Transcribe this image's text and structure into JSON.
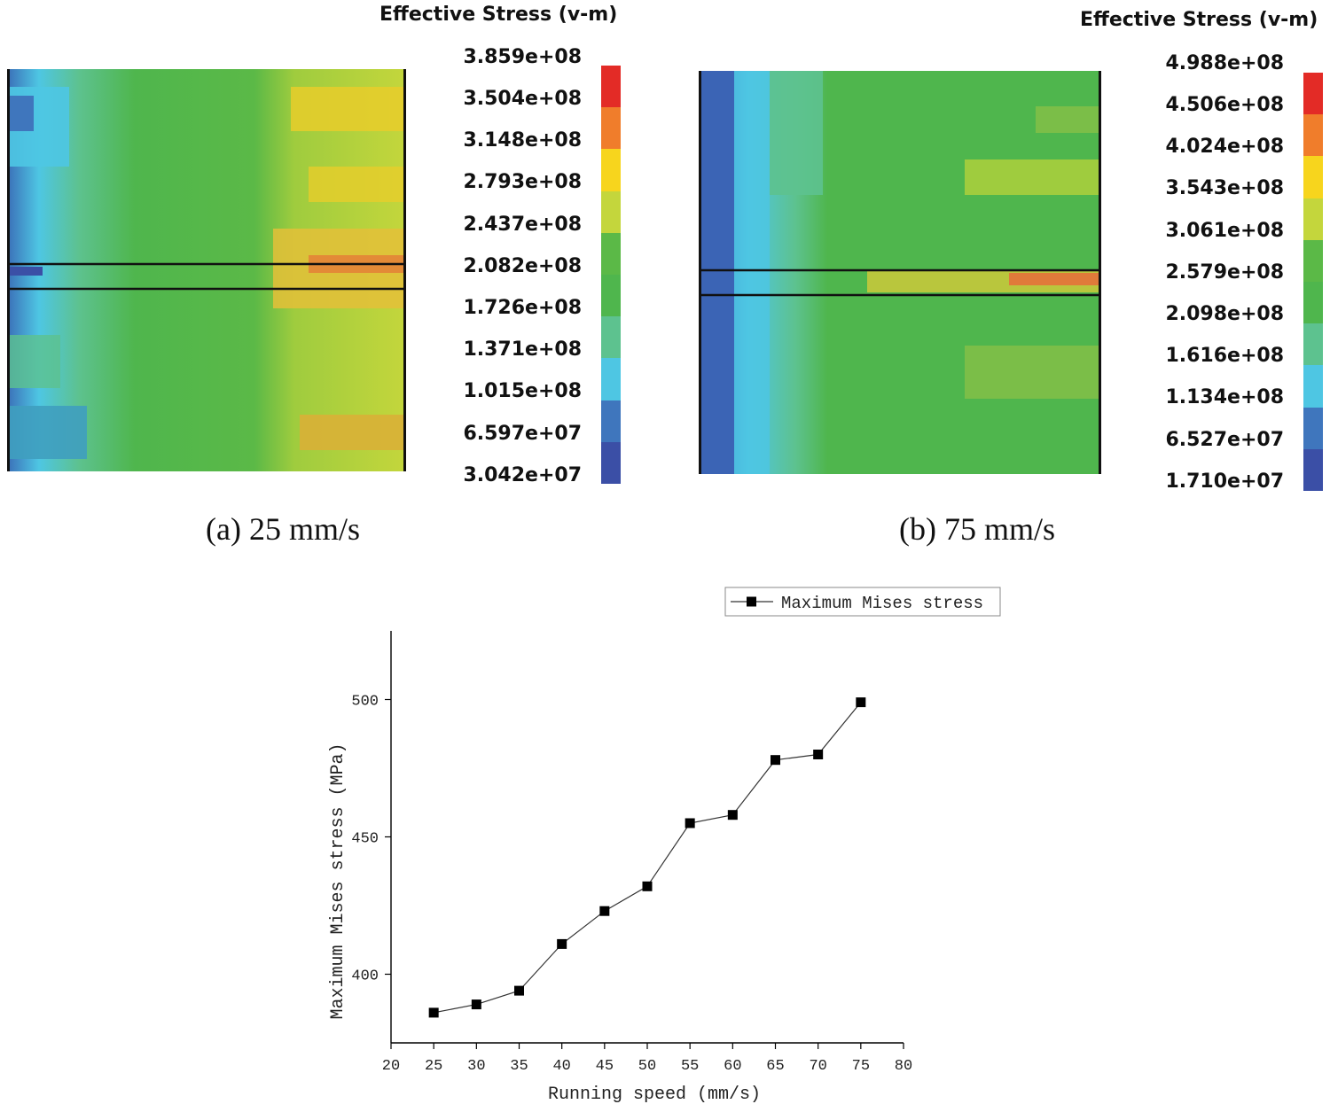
{
  "panels": [
    {
      "title": "Effective Stress (v-m)",
      "caption": "(a) 25 mm/s",
      "levels": [
        "3.859e+08",
        "3.504e+08",
        "3.148e+08",
        "2.793e+08",
        "2.437e+08",
        "2.082e+08",
        "1.726e+08",
        "1.371e+08",
        "1.015e+08",
        "6.597e+07",
        "3.042e+07"
      ]
    },
    {
      "title": "Effective Stress (v-m)",
      "caption": "(b) 75 mm/s",
      "levels": [
        "4.988e+08",
        "4.506e+08",
        "4.024e+08",
        "3.543e+08",
        "3.061e+08",
        "2.579e+08",
        "2.098e+08",
        "1.616e+08",
        "1.134e+08",
        "6.527e+07",
        "1.710e+07"
      ]
    }
  ],
  "colormap": [
    "#e32b26",
    "#f07d2b",
    "#f7d51d",
    "#c4d63c",
    "#5bb947",
    "#4fb64d",
    "#5dc28f",
    "#4ec6e3",
    "#3f76bd",
    "#3b4fa6"
  ],
  "chart_data": {
    "type": "line",
    "xlabel": "Running speed (mm/s)",
    "ylabel": "Maximum Mises stress (MPa)",
    "xlim": [
      20,
      80
    ],
    "ylim": [
      375,
      525
    ],
    "xticks": [
      20,
      25,
      30,
      35,
      40,
      45,
      50,
      55,
      60,
      65,
      70,
      75,
      80
    ],
    "yticks": [
      400,
      450,
      500
    ],
    "legend_position": "top-right",
    "series": [
      {
        "name": "Maximum Mises stress",
        "marker": "square",
        "color": "#000000",
        "x": [
          25,
          30,
          35,
          40,
          45,
          50,
          55,
          60,
          65,
          70,
          75
        ],
        "y": [
          386,
          389,
          394,
          411,
          423,
          432,
          455,
          458,
          478,
          480,
          499
        ]
      }
    ]
  }
}
